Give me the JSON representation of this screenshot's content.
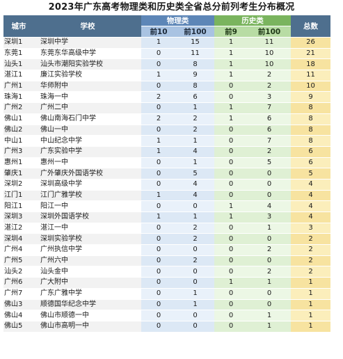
{
  "title": "2023年广东高考物理类和历史类全省总分前列考生分布概况",
  "header": {
    "city": "城市",
    "school": "学校",
    "physics": "物理类",
    "history": "历史类",
    "total": "总数",
    "phys_top10": "前10",
    "phys_top100": "前100",
    "hist_top9": "前9",
    "hist_top100": "前100"
  },
  "rows": [
    {
      "city": "深圳1",
      "school": "深圳中学",
      "p10": "1",
      "p100": "15",
      "h9": "1",
      "h100": "11",
      "total": "26"
    },
    {
      "city": "东莞1",
      "school": "东莞东华高级中学",
      "p10": "0",
      "p100": "11",
      "h9": "1",
      "h100": "10",
      "total": "21"
    },
    {
      "city": "汕头1",
      "school": "汕头市潮阳实验学校",
      "p10": "0",
      "p100": "8",
      "h9": "1",
      "h100": "10",
      "total": "18"
    },
    {
      "city": "湛江1",
      "school": "廉江实验学校",
      "p10": "1",
      "p100": "9",
      "h9": "1",
      "h100": "2",
      "total": "11"
    },
    {
      "city": "广州1",
      "school": "华师附中",
      "p10": "0",
      "p100": "8",
      "h9": "0",
      "h100": "2",
      "total": "10"
    },
    {
      "city": "珠海1",
      "school": "珠海一中",
      "p10": "2",
      "p100": "6",
      "h9": "0",
      "h100": "3",
      "total": "9"
    },
    {
      "city": "广州2",
      "school": "广州二中",
      "p10": "0",
      "p100": "1",
      "h9": "1",
      "h100": "7",
      "total": "8"
    },
    {
      "city": "佛山1",
      "school": "佛山南海石门中学",
      "p10": "2",
      "p100": "2",
      "h9": "1",
      "h100": "6",
      "total": "8"
    },
    {
      "city": "佛山2",
      "school": "佛山一中",
      "p10": "0",
      "p100": "2",
      "h9": "0",
      "h100": "6",
      "total": "8"
    },
    {
      "city": "中山1",
      "school": "中山纪念中学",
      "p10": "1",
      "p100": "1",
      "h9": "0",
      "h100": "7",
      "total": "8"
    },
    {
      "city": "广州3",
      "school": "广东实验中学",
      "p10": "1",
      "p100": "4",
      "h9": "0",
      "h100": "2",
      "total": "6"
    },
    {
      "city": "惠州1",
      "school": "惠州一中",
      "p10": "0",
      "p100": "1",
      "h9": "0",
      "h100": "5",
      "total": "6"
    },
    {
      "city": "肇庆1",
      "school": "广外肇庆外国语学校",
      "p10": "0",
      "p100": "5",
      "h9": "0",
      "h100": "0",
      "total": "5"
    },
    {
      "city": "深圳2",
      "school": "深圳高级中学",
      "p10": "0",
      "p100": "4",
      "h9": "0",
      "h100": "0",
      "total": "4"
    },
    {
      "city": "江门1",
      "school": "江门广雅学校",
      "p10": "1",
      "p100": "4",
      "h9": "0",
      "h100": "0",
      "total": "4"
    },
    {
      "city": "阳江1",
      "school": "阳江一中",
      "p10": "0",
      "p100": "0",
      "h9": "1",
      "h100": "4",
      "total": "4"
    },
    {
      "city": "深圳3",
      "school": "深圳外国语学校",
      "p10": "1",
      "p100": "1",
      "h9": "1",
      "h100": "3",
      "total": "4"
    },
    {
      "city": "湛江2",
      "school": "湛江一中",
      "p10": "0",
      "p100": "2",
      "h9": "0",
      "h100": "1",
      "total": "3"
    },
    {
      "city": "深圳4",
      "school": "深圳实验学校",
      "p10": "0",
      "p100": "2",
      "h9": "0",
      "h100": "0",
      "total": "2"
    },
    {
      "city": "广州4",
      "school": "广州执信中学",
      "p10": "0",
      "p100": "0",
      "h9": "0",
      "h100": "2",
      "total": "2"
    },
    {
      "city": "广州5",
      "school": "广州六中",
      "p10": "0",
      "p100": "2",
      "h9": "0",
      "h100": "0",
      "total": "2"
    },
    {
      "city": "汕头2",
      "school": "汕头金中",
      "p10": "0",
      "p100": "0",
      "h9": "0",
      "h100": "2",
      "total": "2"
    },
    {
      "city": "广州6",
      "school": "广大附中",
      "p10": "0",
      "p100": "0",
      "h9": "1",
      "h100": "1",
      "total": "1"
    },
    {
      "city": "广州7",
      "school": "广东广雅中学",
      "p10": "0",
      "p100": "1",
      "h9": "0",
      "h100": "0",
      "total": "1"
    },
    {
      "city": "佛山3",
      "school": "顺德国华纪念中学",
      "p10": "0",
      "p100": "1",
      "h9": "0",
      "h100": "0",
      "total": "1"
    },
    {
      "city": "佛山4",
      "school": "佛山市顺德一中",
      "p10": "0",
      "p100": "0",
      "h9": "0",
      "h100": "1",
      "total": "1"
    },
    {
      "city": "佛山5",
      "school": "佛山市高明一中",
      "p10": "0",
      "p100": "0",
      "h9": "0",
      "h100": "1",
      "total": "1"
    }
  ]
}
